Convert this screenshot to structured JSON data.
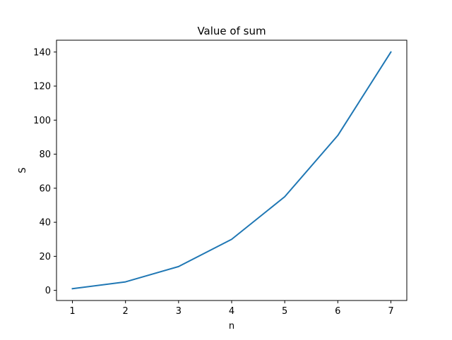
{
  "chart_data": {
    "type": "line",
    "title": "Value of sum",
    "xlabel": "n",
    "ylabel": "S",
    "x": [
      1,
      2,
      3,
      4,
      5,
      6,
      7
    ],
    "series": [
      {
        "values": [
          1,
          5,
          14,
          30,
          55,
          91,
          140
        ],
        "color": "#1f77b4"
      }
    ],
    "xlim": [
      0.7,
      7.3
    ],
    "ylim": [
      -5.95,
      146.95
    ],
    "xticks": [
      1,
      2,
      3,
      4,
      5,
      6,
      7
    ],
    "yticks": [
      0,
      20,
      40,
      60,
      80,
      100,
      120,
      140
    ],
    "grid": false,
    "legend": "none"
  }
}
